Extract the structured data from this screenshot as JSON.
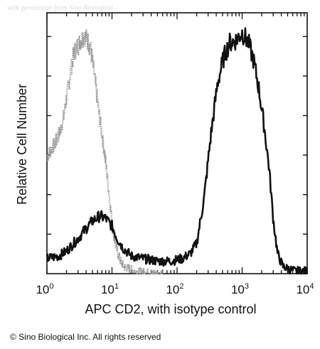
{
  "watermark": "with permission from Sino Biological",
  "copyright": "© Sino Biological Inc. All rights reserved",
  "chart_data": {
    "type": "line",
    "title": "",
    "xlabel": "APC CD2, with isotype control",
    "ylabel": "Relative Cell Number",
    "xscale": "log",
    "xlim": [
      1,
      10000
    ],
    "ylim": [
      0,
      1
    ],
    "x_ticks": [
      {
        "base": "10",
        "exp": "0",
        "value": 1
      },
      {
        "base": "10",
        "exp": "1",
        "value": 10
      },
      {
        "base": "10",
        "exp": "2",
        "value": 100
      },
      {
        "base": "10",
        "exp": "3",
        "value": 1000
      },
      {
        "base": "10",
        "exp": "4",
        "value": 10000
      }
    ],
    "grid": false,
    "legend": "none",
    "series": [
      {
        "role": "isotype control",
        "color": "#9a9a9a",
        "style": "dotted",
        "x": [
          1.0,
          1.2,
          1.4,
          1.6,
          1.8,
          2.0,
          2.3,
          2.6,
          3.0,
          3.3,
          3.7,
          4.0,
          4.4,
          4.8,
          5.3,
          5.8,
          6.3,
          7.0,
          7.7,
          8.5,
          9.5,
          10.5,
          12.0,
          13.5,
          15.0,
          18.0,
          22.0,
          28.0,
          40.0,
          60.0
        ],
        "y": [
          0.47,
          0.5,
          0.53,
          0.57,
          0.62,
          0.7,
          0.8,
          0.88,
          0.91,
          0.93,
          0.95,
          0.94,
          0.92,
          0.88,
          0.8,
          0.72,
          0.64,
          0.56,
          0.48,
          0.38,
          0.26,
          0.16,
          0.09,
          0.05,
          0.03,
          0.02,
          0.01,
          0.005,
          0.0,
          0.0
        ]
      },
      {
        "role": "APC CD2",
        "color": "#111111",
        "style": "solid",
        "x": [
          1.0,
          1.5,
          2.0,
          3.0,
          4.0,
          5.0,
          6.5,
          8.0,
          10.0,
          12.0,
          15.0,
          20.0,
          30.0,
          50.0,
          80.0,
          120.0,
          160.0,
          200.0,
          260.0,
          330.0,
          420.0,
          520.0,
          640.0,
          800.0,
          1000.0,
          1250.0,
          1500.0,
          1800.0,
          2200.0,
          2600.0,
          3000.0,
          3500.0,
          4200.0,
          5000.0,
          6500.0,
          8000.0,
          10000.0
        ],
        "y": [
          0.06,
          0.07,
          0.09,
          0.14,
          0.18,
          0.21,
          0.23,
          0.22,
          0.19,
          0.14,
          0.1,
          0.07,
          0.06,
          0.05,
          0.05,
          0.06,
          0.08,
          0.12,
          0.3,
          0.55,
          0.76,
          0.86,
          0.92,
          0.93,
          0.96,
          0.92,
          0.85,
          0.74,
          0.58,
          0.42,
          0.22,
          0.08,
          0.03,
          0.02,
          0.01,
          0.01,
          0.01
        ]
      }
    ]
  }
}
